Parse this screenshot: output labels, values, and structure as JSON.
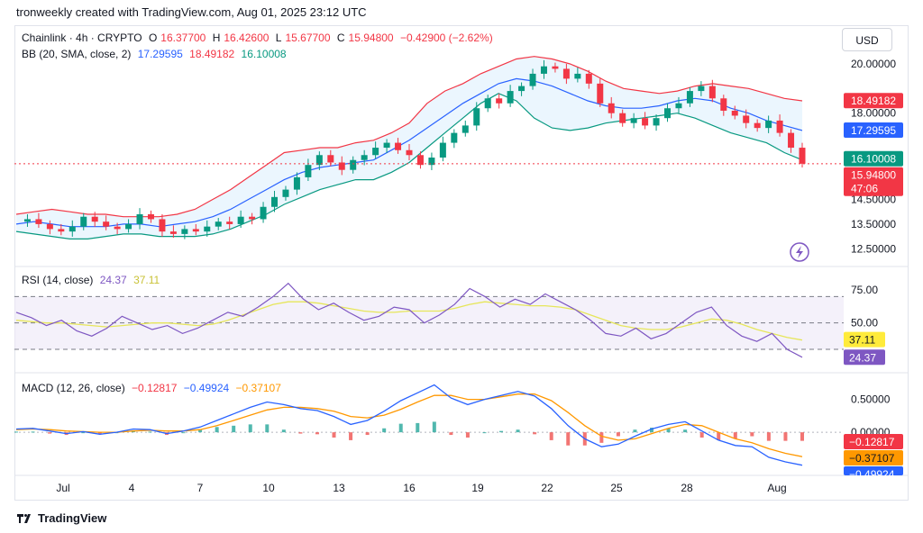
{
  "header": {
    "text": "tronweekly created with TradingView.com, Aug 01, 2025 23:12 UTC"
  },
  "currency_button": "USD",
  "legend": {
    "symbol": "Chainlink · 4h · CRYPTO",
    "o_label": "O",
    "o_value": "16.37700",
    "h_label": "H",
    "h_value": "16.42600",
    "l_label": "L",
    "l_value": "15.67700",
    "c_label": "C",
    "c_value": "15.94800",
    "change": "−0.42900 (−2.62%)",
    "bb_label": "BB (20, SMA, close, 2)",
    "bb_basis": "17.29595",
    "bb_upper": "18.49182",
    "bb_lower": "16.10008",
    "rsi_label": "RSI (14, close)",
    "rsi_value": "24.37",
    "rsi_ma": "37.11",
    "macd_label": "MACD (12, 26, close)",
    "macd_hist": "−0.12817",
    "macd_line": "−0.49924",
    "macd_signal": "−0.37107"
  },
  "footer": {
    "brand": "TradingView"
  },
  "colors": {
    "up": "#089981",
    "down": "#f23645",
    "bb_basis": "#2962ff",
    "bb_upper": "#f23645",
    "bb_lower": "#089981",
    "bb_fill": "#e3f2fd",
    "rsi": "#7e57c2",
    "rsi_ma": "#e6e65a",
    "macd": "#2962ff",
    "signal": "#ff9800"
  },
  "chart_data": {
    "type": "candlestick",
    "x_ticks": [
      "Jul",
      "4",
      "7",
      "10",
      "13",
      "16",
      "19",
      "22",
      "25",
      "28",
      "Aug"
    ],
    "y_ticks": [
      "20.00000",
      "18.00000",
      "14.50000",
      "13.50000",
      "12.50000"
    ],
    "ylim": [
      12.0,
      20.4
    ],
    "price_labels": [
      {
        "value": "18.49182",
        "color": "#f23645"
      },
      {
        "value": "17.29595",
        "color": "#2962ff"
      },
      {
        "value": "16.10008",
        "color": "#089981"
      },
      {
        "value": "15.94800",
        "sub": "47:06",
        "color": "#f23645"
      }
    ],
    "price_series": [
      13.6,
      13.7,
      13.5,
      13.3,
      13.2,
      13.4,
      13.8,
      13.6,
      13.4,
      13.3,
      13.5,
      13.9,
      13.7,
      13.2,
      13.1,
      13.3,
      13.2,
      13.4,
      13.6,
      13.5,
      13.8,
      13.7,
      14.2,
      14.6,
      14.9,
      15.4,
      15.9,
      16.3,
      16.0,
      15.7,
      16.1,
      16.3,
      16.6,
      16.8,
      16.5,
      16.3,
      15.9,
      16.2,
      16.8,
      17.2,
      17.5,
      18.2,
      18.6,
      18.4,
      18.9,
      19.1,
      19.6,
      19.9,
      19.8,
      19.4,
      19.6,
      19.2,
      18.4,
      18.0,
      17.6,
      17.8,
      17.5,
      17.8,
      18.2,
      18.4,
      18.9,
      19.1,
      18.6,
      18.1,
      17.9,
      17.6,
      17.4,
      17.7,
      17.2,
      16.6,
      15.95
    ],
    "bb_upper_series": [
      13.9,
      14.0,
      14.1,
      14.0,
      13.9,
      13.9,
      13.8,
      13.8,
      13.8,
      13.9,
      14.1,
      14.5,
      14.9,
      15.4,
      15.9,
      16.4,
      16.5,
      16.6,
      16.6,
      16.8,
      16.9,
      17.2,
      17.6,
      18.4,
      18.9,
      19.2,
      19.6,
      19.9,
      20.2,
      20.3,
      20.2,
      20.0,
      19.7,
      19.3,
      19.0,
      18.9,
      18.8,
      18.9,
      19.1,
      19.2,
      19.1,
      19.0,
      18.8,
      18.6,
      18.5
    ],
    "bb_basis_series": [
      13.5,
      13.6,
      13.5,
      13.4,
      13.4,
      13.4,
      13.5,
      13.5,
      13.4,
      13.5,
      13.6,
      13.8,
      14.1,
      14.5,
      14.9,
      15.3,
      15.6,
      15.8,
      15.9,
      16.0,
      16.1,
      16.5,
      16.9,
      17.4,
      17.9,
      18.4,
      18.8,
      19.2,
      19.4,
      19.3,
      19.1,
      18.8,
      18.5,
      18.3,
      18.2,
      18.2,
      18.3,
      18.5,
      18.6,
      18.5,
      18.2,
      18.0,
      17.7,
      17.5,
      17.3
    ],
    "bb_lower_series": [
      13.2,
      13.1,
      13.0,
      12.9,
      12.9,
      13.0,
      13.1,
      13.1,
      13.0,
      13.0,
      13.0,
      13.1,
      13.3,
      13.6,
      13.9,
      14.3,
      14.6,
      14.9,
      15.1,
      15.3,
      15.3,
      15.6,
      16.0,
      16.6,
      17.2,
      17.8,
      18.4,
      18.8,
      18.5,
      17.8,
      17.4,
      17.3,
      17.4,
      17.6,
      17.7,
      17.8,
      17.9,
      18.0,
      17.8,
      17.5,
      17.2,
      17.0,
      16.8,
      16.4,
      16.1
    ],
    "rsi": {
      "ticks": [
        "75.00",
        "50.00"
      ],
      "ylim": [
        15,
        90
      ],
      "bands": [
        70,
        50,
        30
      ],
      "value_label": "24.37",
      "ma_label": "37.11",
      "rsi_series": [
        58,
        54,
        48,
        52,
        44,
        40,
        46,
        55,
        50,
        45,
        48,
        42,
        46,
        52,
        58,
        55,
        62,
        70,
        80,
        68,
        60,
        65,
        58,
        52,
        55,
        62,
        60,
        50,
        56,
        64,
        76,
        70,
        62,
        68,
        64,
        72,
        66,
        60,
        52,
        42,
        40,
        46,
        38,
        42,
        50,
        58,
        62,
        48,
        40,
        36,
        42,
        30,
        24
      ],
      "ma_series": [
        52,
        51,
        50,
        50,
        49,
        48,
        47,
        48,
        49,
        50,
        50,
        49,
        48,
        49,
        52,
        56,
        60,
        64,
        66,
        66,
        65,
        63,
        61,
        59,
        58,
        58,
        59,
        59,
        59,
        61,
        64,
        66,
        65,
        64,
        63,
        63,
        62,
        60,
        56,
        52,
        48,
        46,
        45,
        45,
        47,
        50,
        53,
        52,
        49,
        45,
        42,
        39,
        37
      ]
    },
    "macd": {
      "ticks": [
        "0.50000",
        "0.00000"
      ],
      "ylim": [
        -0.6,
        0.85
      ],
      "hist_label": "−0.12817",
      "macd_label": "−0.49924",
      "signal_label": "−0.37107",
      "macd_series": [
        0.05,
        0.06,
        0.02,
        -0.02,
        0.01,
        -0.03,
        0.0,
        0.05,
        0.04,
        -0.02,
        0.02,
        0.08,
        0.18,
        0.28,
        0.38,
        0.46,
        0.42,
        0.36,
        0.33,
        0.24,
        0.12,
        0.18,
        0.32,
        0.48,
        0.6,
        0.72,
        0.52,
        0.42,
        0.5,
        0.56,
        0.62,
        0.55,
        0.36,
        0.1,
        -0.1,
        -0.22,
        -0.18,
        -0.06,
        0.05,
        0.12,
        0.16,
        0.02,
        -0.12,
        -0.2,
        -0.22,
        -0.38,
        -0.45,
        -0.5
      ],
      "signal_series": [
        0.04,
        0.05,
        0.04,
        0.02,
        0.01,
        0.0,
        0.0,
        0.02,
        0.03,
        0.02,
        0.02,
        0.04,
        0.1,
        0.18,
        0.26,
        0.34,
        0.38,
        0.38,
        0.36,
        0.32,
        0.24,
        0.22,
        0.26,
        0.35,
        0.46,
        0.56,
        0.56,
        0.5,
        0.5,
        0.54,
        0.58,
        0.58,
        0.48,
        0.3,
        0.1,
        -0.06,
        -0.12,
        -0.1,
        -0.02,
        0.06,
        0.12,
        0.1,
        0.0,
        -0.1,
        -0.16,
        -0.25,
        -0.32,
        -0.37
      ]
    }
  }
}
